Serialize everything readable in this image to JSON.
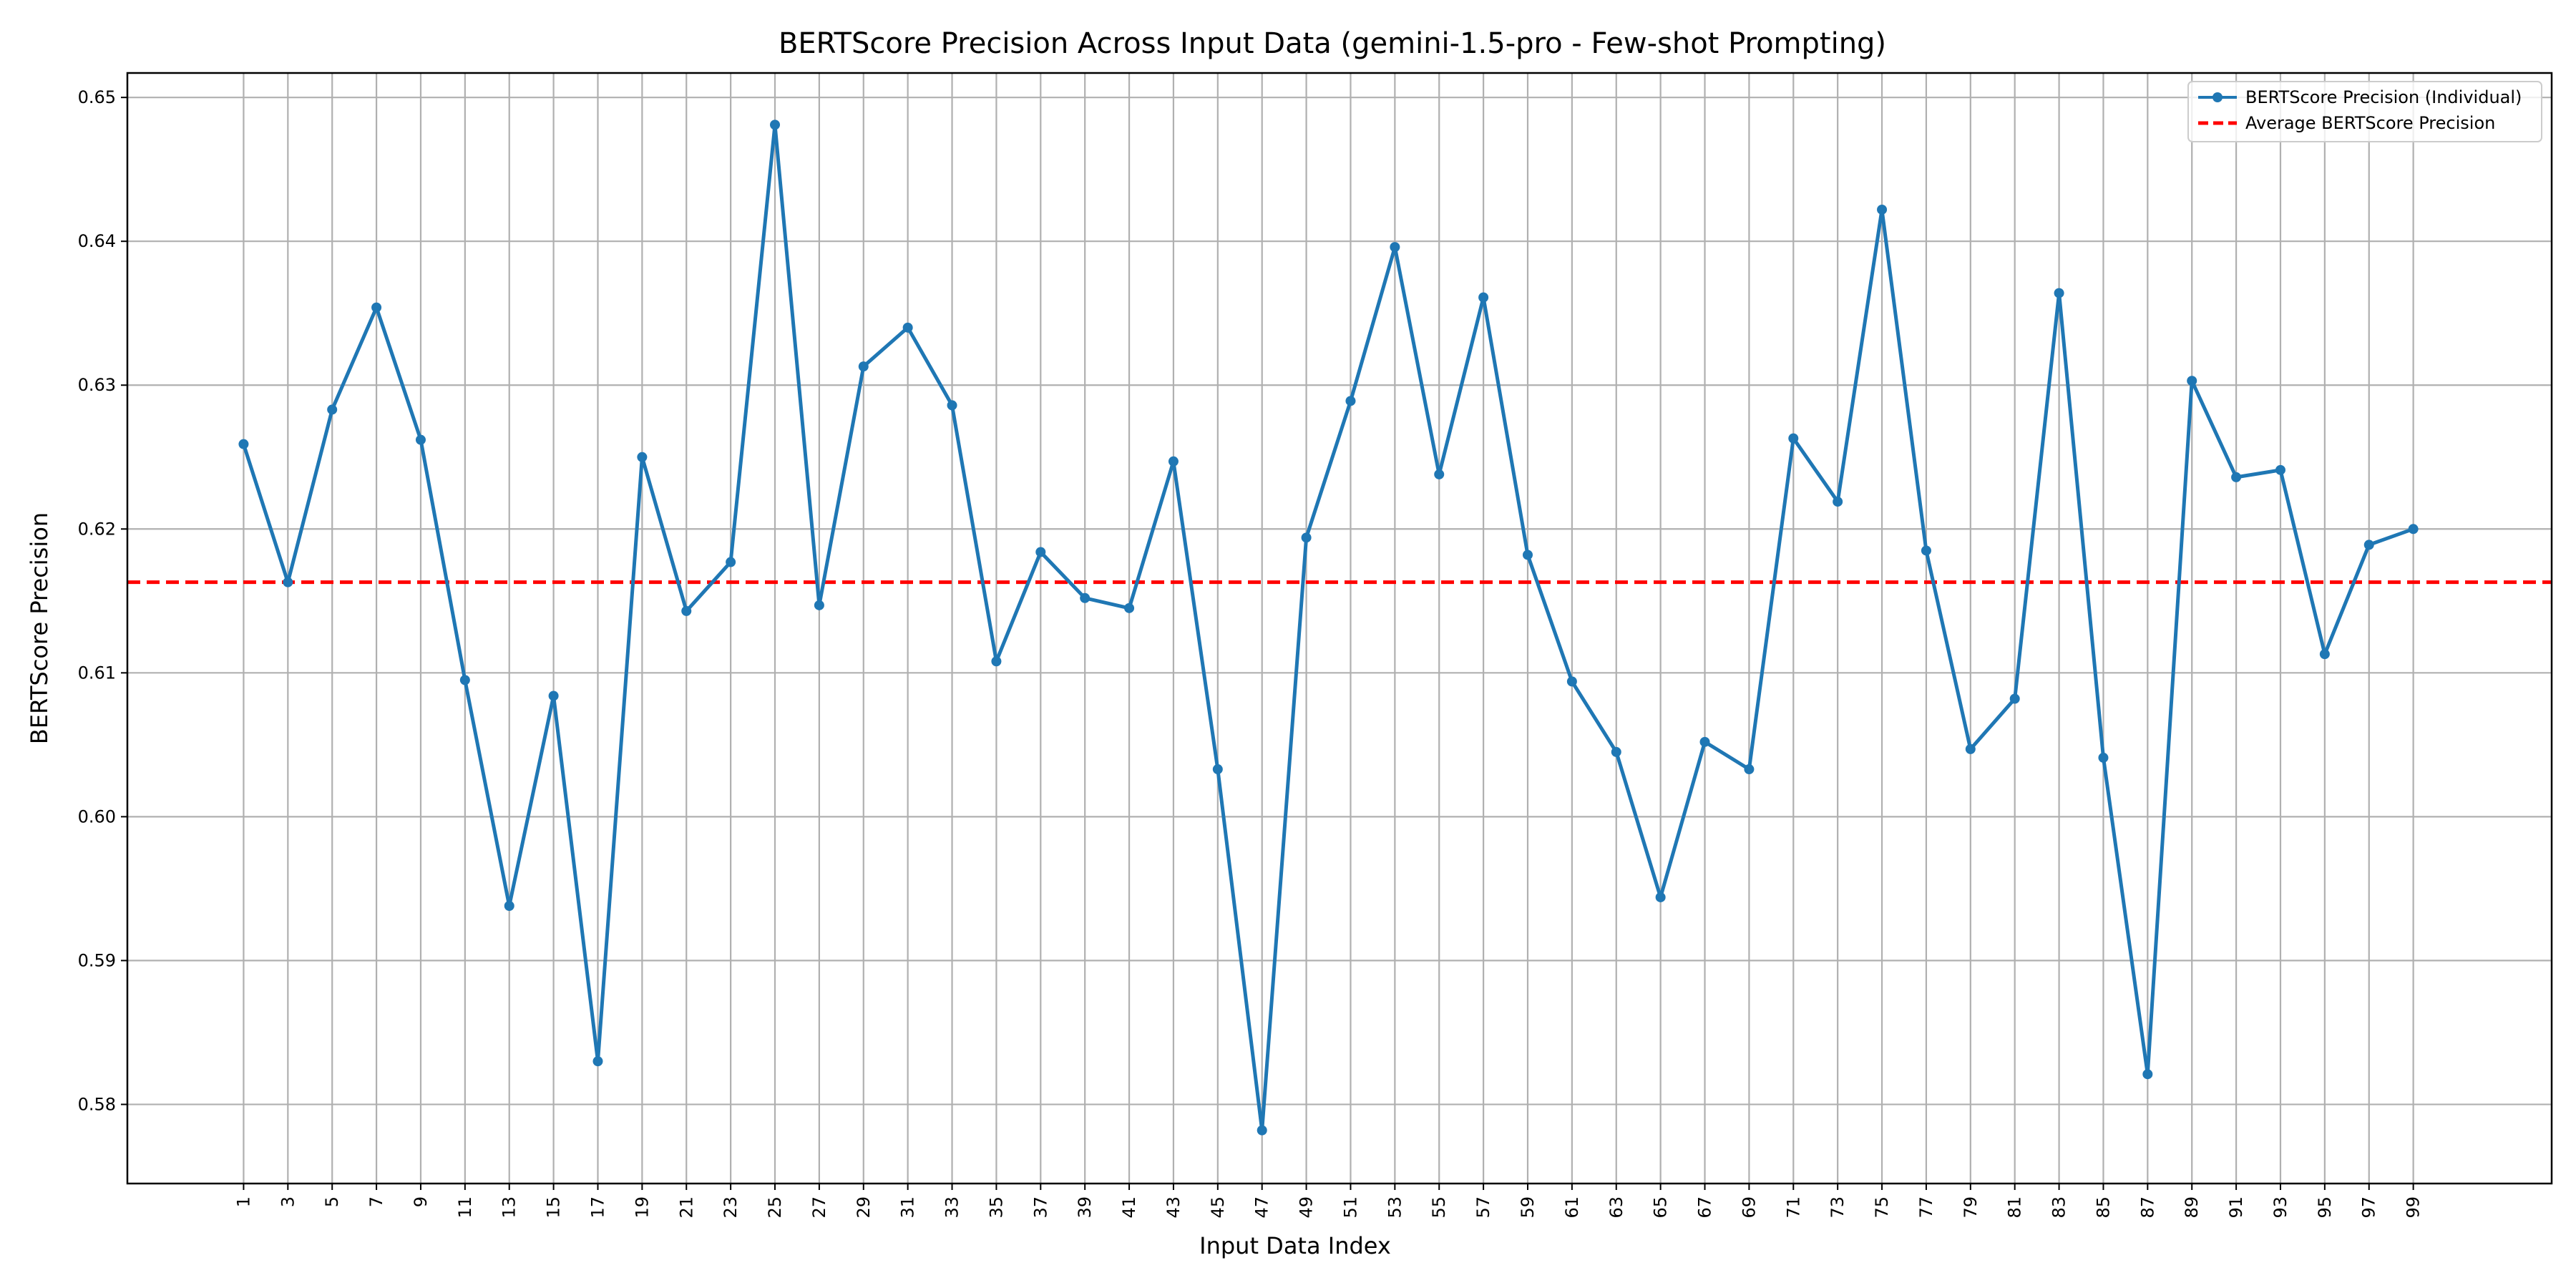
{
  "chart_data": {
    "type": "line",
    "title": "BERTScore Precision Across Input Data (gemini-1.5-pro - Few-shot Prompting)",
    "xlabel": "Input Data Index",
    "ylabel": "BERTScore Precision",
    "x_ticks": [
      1,
      3,
      5,
      7,
      9,
      11,
      13,
      15,
      17,
      19,
      21,
      23,
      25,
      27,
      29,
      31,
      33,
      35,
      37,
      39,
      41,
      43,
      45,
      47,
      49,
      51,
      53,
      55,
      57,
      59,
      61,
      63,
      65,
      67,
      69,
      71,
      73,
      75,
      77,
      79,
      81,
      83,
      85,
      87,
      89,
      91,
      93,
      95,
      97,
      99
    ],
    "x_tick_labels": [
      "1",
      "3",
      "5",
      "7",
      "9",
      "11",
      "13",
      "15",
      "17",
      "19",
      "21",
      "23",
      "25",
      "27",
      "29",
      "31",
      "33",
      "35",
      "37",
      "39",
      "41",
      "43",
      "45",
      "47",
      "49",
      "51",
      "53",
      "55",
      "57",
      "59",
      "61",
      "63",
      "65",
      "67",
      "69",
      "71",
      "73",
      "75",
      "77",
      "79",
      "81",
      "83",
      "85",
      "87",
      "89",
      "91",
      "93",
      "95",
      "97",
      "99"
    ],
    "xlim": [
      -4.25,
      105.25
    ],
    "ylim": [
      0.5745,
      0.6517
    ],
    "y_ticks": [
      0.58,
      0.59,
      0.6,
      0.61,
      0.62,
      0.63,
      0.64,
      0.65
    ],
    "y_tick_labels": [
      "0.58",
      "0.59",
      "0.60",
      "0.61",
      "0.62",
      "0.63",
      "0.64",
      "0.65"
    ],
    "grid": true,
    "legend_position": "top-right",
    "series": [
      {
        "name": "BERTScore Precision (Individual)",
        "color": "#1f77b4",
        "style": "solid-with-markers",
        "x": [
          1,
          3,
          5,
          7,
          9,
          11,
          13,
          15,
          17,
          19,
          21,
          23,
          25,
          27,
          29,
          31,
          33,
          35,
          37,
          39,
          41,
          43,
          45,
          47,
          49,
          51,
          53,
          55,
          57,
          59,
          61,
          63,
          65,
          67,
          69,
          71,
          73,
          75,
          77,
          79,
          81,
          83,
          85,
          87,
          89,
          91,
          93,
          95,
          97,
          99
        ],
        "values": [
          0.6259,
          0.6163,
          0.6283,
          0.6354,
          0.6262,
          0.6095,
          0.5938,
          0.6084,
          0.583,
          0.625,
          0.6143,
          0.6177,
          0.6481,
          0.6147,
          0.6313,
          0.634,
          0.6286,
          0.6108,
          0.6184,
          0.6152,
          0.6145,
          0.6247,
          0.6033,
          0.5782,
          0.6194,
          0.6289,
          0.6396,
          0.6238,
          0.6361,
          0.6182,
          0.6094,
          0.6045,
          0.5944,
          0.6052,
          0.6033,
          0.6263,
          0.6219,
          0.6422,
          0.6185,
          0.6047,
          0.6082,
          0.6364,
          0.6041,
          0.5821,
          0.6303,
          0.6236,
          0.6241,
          0.6113,
          0.6189,
          0.62
        ]
      },
      {
        "name": "Average BERTScore Precision",
        "color": "#ff0000",
        "style": "dashed",
        "y": 0.6163
      }
    ]
  }
}
